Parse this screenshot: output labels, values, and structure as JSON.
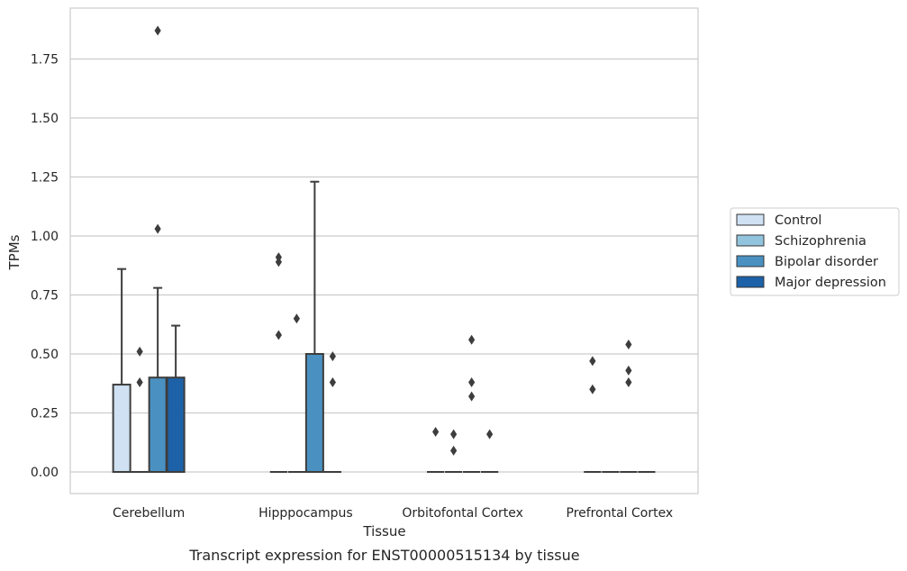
{
  "caption": "Transcript expression for ENST00000515134 by tissue",
  "chart_data": {
    "type": "boxplot",
    "xlabel": "Tissue",
    "ylabel": "TPMs",
    "ylim": [
      -0.09,
      1.96
    ],
    "yticks": [
      0.0,
      0.25,
      0.5,
      0.75,
      1.0,
      1.25,
      1.5,
      1.75
    ],
    "ytick_labels": [
      "0.00",
      "0.25",
      "0.50",
      "0.75",
      "1.00",
      "1.25",
      "1.50",
      "1.75"
    ],
    "grid": true,
    "legend_placement": "right",
    "categories": [
      "Cerebellum",
      "Hipppocampus",
      "Orbitofontal Cortex",
      "Prefrontal Cortex"
    ],
    "series": [
      {
        "name": "Control",
        "color": "#cfe1f2",
        "boxes": [
          {
            "q1": 0,
            "median": 0,
            "q3": 0.37,
            "whisker_low": 0,
            "whisker_high": 0.86,
            "outliers": []
          },
          {
            "q1": 0,
            "median": 0,
            "q3": 0,
            "whisker_low": 0,
            "whisker_high": 0,
            "outliers": [
              0.58,
              0.89,
              0.91
            ]
          },
          {
            "q1": 0,
            "median": 0,
            "q3": 0,
            "whisker_low": 0,
            "whisker_high": 0,
            "outliers": [
              0.17
            ]
          },
          {
            "q1": 0,
            "median": 0,
            "q3": 0,
            "whisker_low": 0,
            "whisker_high": 0,
            "outliers": [
              0.35,
              0.47
            ]
          }
        ]
      },
      {
        "name": "Schizophrenia",
        "color": "#93c4de",
        "boxes": [
          {
            "q1": 0,
            "median": 0,
            "q3": 0,
            "whisker_low": 0,
            "whisker_high": 0,
            "outliers": [
              0.38,
              0.51
            ]
          },
          {
            "q1": 0,
            "median": 0,
            "q3": 0,
            "whisker_low": 0,
            "whisker_high": 0,
            "outliers": [
              0.65
            ]
          },
          {
            "q1": 0,
            "median": 0,
            "q3": 0,
            "whisker_low": 0,
            "whisker_high": 0,
            "outliers": [
              0.09,
              0.16
            ]
          },
          {
            "q1": 0,
            "median": 0,
            "q3": 0,
            "whisker_low": 0,
            "whisker_high": 0,
            "outliers": []
          }
        ]
      },
      {
        "name": "Bipolar disorder",
        "color": "#4a91c2",
        "boxes": [
          {
            "q1": 0,
            "median": 0,
            "q3": 0.4,
            "whisker_low": 0,
            "whisker_high": 0.78,
            "outliers": [
              1.03,
              1.87
            ]
          },
          {
            "q1": 0,
            "median": 0,
            "q3": 0.5,
            "whisker_low": 0,
            "whisker_high": 1.23,
            "outliers": []
          },
          {
            "q1": 0,
            "median": 0,
            "q3": 0,
            "whisker_low": 0,
            "whisker_high": 0,
            "outliers": [
              0.32,
              0.38,
              0.56
            ]
          },
          {
            "q1": 0,
            "median": 0,
            "q3": 0,
            "whisker_low": 0,
            "whisker_high": 0,
            "outliers": [
              0.38,
              0.43,
              0.54
            ]
          }
        ]
      },
      {
        "name": "Major depression",
        "color": "#1d62a8",
        "boxes": [
          {
            "q1": 0,
            "median": 0,
            "q3": 0.4,
            "whisker_low": 0,
            "whisker_high": 0.62,
            "outliers": []
          },
          {
            "q1": 0,
            "median": 0,
            "q3": 0,
            "whisker_low": 0,
            "whisker_high": 0,
            "outliers": [
              0.38,
              0.49
            ]
          },
          {
            "q1": 0,
            "median": 0,
            "q3": 0,
            "whisker_low": 0,
            "whisker_high": 0,
            "outliers": [
              0.16
            ]
          },
          {
            "q1": 0,
            "median": 0,
            "q3": 0,
            "whisker_low": 0,
            "whisker_high": 0,
            "outliers": []
          }
        ]
      }
    ]
  }
}
